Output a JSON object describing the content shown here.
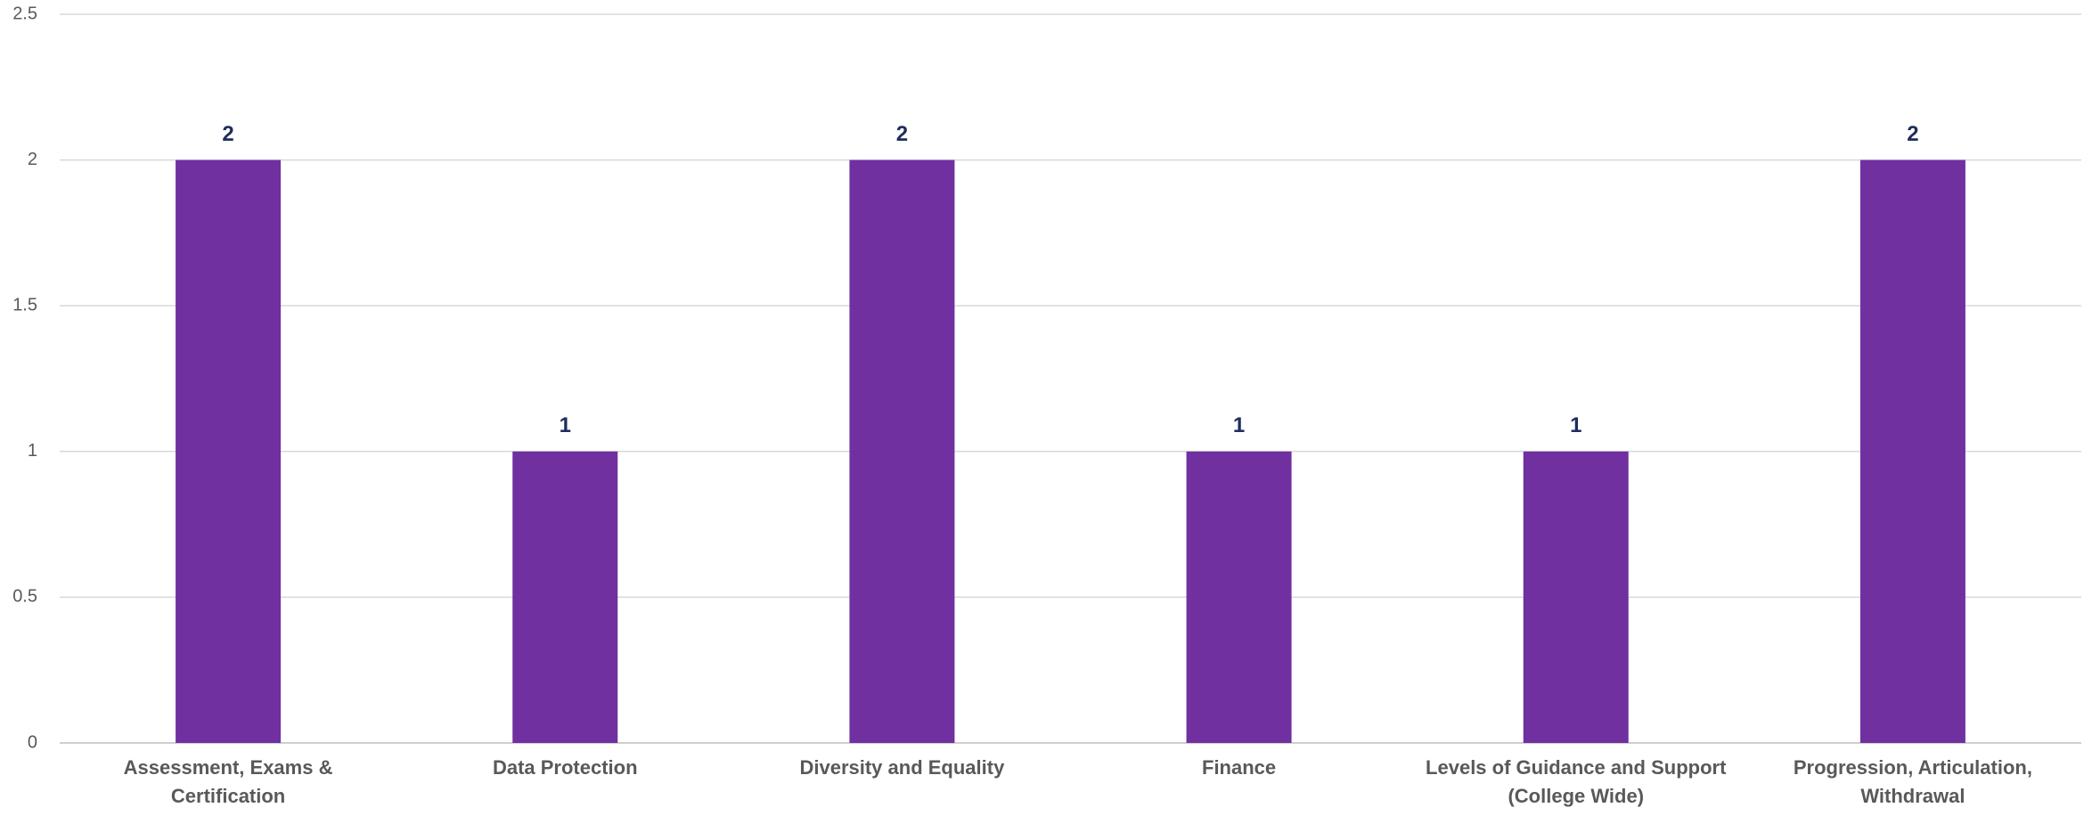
{
  "chart_data": {
    "type": "bar",
    "categories": [
      "Assessment, Exams & Certification",
      "Data Protection",
      "Diversity and Equality",
      "Finance",
      "Levels of Guidance and Support (College Wide)",
      "Progression, Articulation, Withdrawal"
    ],
    "values": [
      2,
      1,
      2,
      1,
      1,
      2
    ],
    "color": "#7030a0",
    "ylim": [
      0,
      2.5
    ],
    "yticks": [
      0,
      0.5,
      1,
      1.5,
      2,
      2.5
    ],
    "grid": true
  }
}
